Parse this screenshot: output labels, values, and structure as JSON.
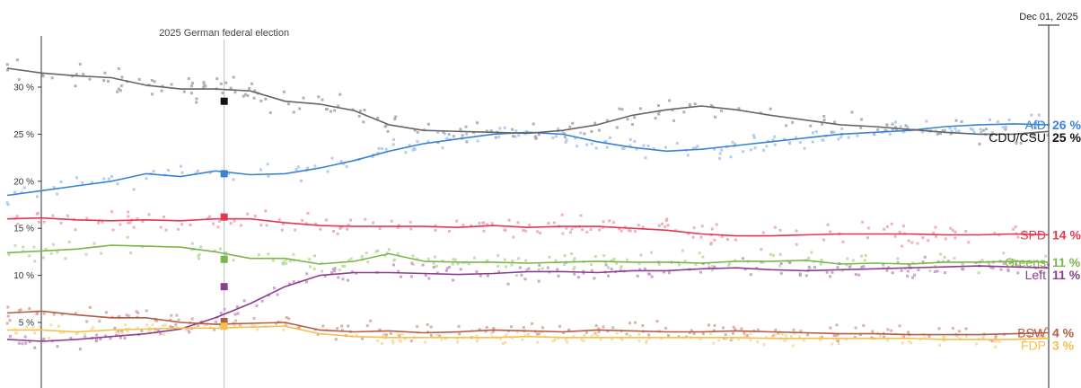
{
  "chart_data": {
    "type": "line",
    "title": "",
    "xlabel": "",
    "ylabel": "",
    "ylim": [
      2,
      35
    ],
    "yticks": [
      {
        "value": 5,
        "label": "5 %"
      },
      {
        "value": 10,
        "label": "10 %"
      },
      {
        "value": 15,
        "label": "15 %"
      },
      {
        "value": 20,
        "label": "20 %"
      },
      {
        "value": 25,
        "label": "25 %"
      },
      {
        "value": 30,
        "label": "30 %"
      }
    ],
    "x": [
      0,
      2,
      4,
      6,
      8,
      10,
      12,
      14,
      16,
      18,
      20,
      22,
      24,
      26,
      28,
      30,
      32,
      34,
      36,
      38,
      40,
      42,
      44,
      46,
      48,
      50,
      52,
      54,
      56,
      58,
      60
    ],
    "annotation": {
      "x": 12.5,
      "label": "2025 German federal election"
    },
    "end_label": {
      "x": 60,
      "label": "Dec 01, 2025"
    },
    "grid": false,
    "legend": "right",
    "series": [
      {
        "name": "AfD",
        "final_label": "26 %",
        "color": "#3b82d6",
        "light": "#a9c9ee",
        "values": [
          18.5,
          19,
          19.5,
          20,
          20.8,
          20.5,
          21.1,
          20.7,
          20.8,
          21.4,
          22.2,
          23.2,
          24,
          24.5,
          25,
          25.2,
          25,
          24.2,
          23.6,
          23.2,
          23.4,
          23.8,
          24.2,
          24.6,
          25,
          25.2,
          25.4,
          25.8,
          26,
          26.1,
          26
        ],
        "marker": 20.8,
        "scatter_spread": 0.8
      },
      {
        "name": "CDU/CSU",
        "final_label": "25 %",
        "color": "#111111",
        "line_color": "#666666",
        "light": "#aaaaaa",
        "values": [
          32,
          31.5,
          31.2,
          31,
          30.2,
          29.8,
          29.8,
          29.6,
          28.5,
          28.2,
          27.5,
          26,
          25.4,
          25.3,
          25.2,
          25.1,
          25.4,
          26,
          27,
          27.6,
          28,
          27.6,
          27,
          26.5,
          26,
          25.8,
          25.5,
          25.2,
          25,
          25,
          25.3
        ],
        "marker": 28.5,
        "scatter_spread": 0.9
      },
      {
        "name": "SPD",
        "final_label": "14 %",
        "color": "#e5364f",
        "light": "#f3a7b3",
        "values": [
          16,
          16.1,
          15.9,
          15.8,
          15.9,
          15.8,
          16,
          16,
          15.6,
          15.3,
          15.2,
          15.2,
          15.2,
          15.1,
          15.3,
          15.1,
          15.2,
          15.2,
          15,
          14.8,
          14.4,
          14.2,
          14.2,
          14.3,
          14.4,
          14.4,
          14.4,
          14.3,
          14.3,
          14.4,
          14.3
        ],
        "marker": 16.2,
        "scatter_spread": 0.8
      },
      {
        "name": "Greens",
        "final_label": "11 %",
        "color": "#7ab648",
        "light": "#bedba4",
        "values": [
          12.4,
          12.6,
          12.8,
          13.2,
          13.1,
          13,
          12.5,
          11.8,
          11.8,
          11.2,
          11.5,
          12.3,
          11.5,
          11.4,
          11.4,
          11.3,
          11.4,
          11.5,
          11.4,
          11.4,
          11.3,
          11.5,
          11.5,
          11.6,
          11.2,
          11.3,
          11.2,
          11.4,
          11.4,
          11.5,
          11.4
        ],
        "marker": 11.7,
        "scatter_spread": 0.7
      },
      {
        "name": "Left",
        "final_label": "11 %",
        "color": "#8e3c8e",
        "light": "#c79ac7",
        "values": [
          3.2,
          3,
          3.2,
          3.5,
          3.8,
          4.3,
          5.5,
          7,
          8.8,
          10,
          10.3,
          10.3,
          10.2,
          10.1,
          10.2,
          10.4,
          10.4,
          10.3,
          10.5,
          10.5,
          10.7,
          10.8,
          10.6,
          10.5,
          10.6,
          10.7,
          10.8,
          10.9,
          11,
          10.9,
          10.8
        ],
        "marker": 8.8,
        "scatter_spread": 0.7
      },
      {
        "name": "BSW",
        "final_label": "4 %",
        "color": "#b25c48",
        "light": "#d9a99d",
        "values": [
          6,
          6.2,
          5.8,
          5.5,
          5.5,
          5,
          4.8,
          4.9,
          5,
          4.2,
          4,
          4.1,
          3.9,
          4,
          4.2,
          4.1,
          4,
          4.2,
          4.1,
          4,
          4,
          4.1,
          4,
          3.9,
          3.8,
          3.8,
          3.7,
          3.7,
          3.7,
          3.8,
          3.9
        ],
        "marker": 5.1,
        "scatter_spread": 0.6
      },
      {
        "name": "FDP",
        "final_label": "3 %",
        "color": "#f2c14e",
        "light": "#f7dc9e",
        "values": [
          4.2,
          4.2,
          4,
          4.2,
          4.3,
          4.4,
          4.4,
          4.5,
          4.6,
          3.8,
          3.5,
          3.4,
          3.4,
          3.4,
          3.4,
          3.5,
          3.4,
          3.4,
          3.4,
          3.4,
          3.4,
          3.4,
          3.3,
          3.3,
          3.3,
          3.3,
          3.3,
          3.2,
          3.2,
          3.2,
          3.3
        ],
        "marker": 4.6,
        "scatter_spread": 0.5
      }
    ]
  }
}
